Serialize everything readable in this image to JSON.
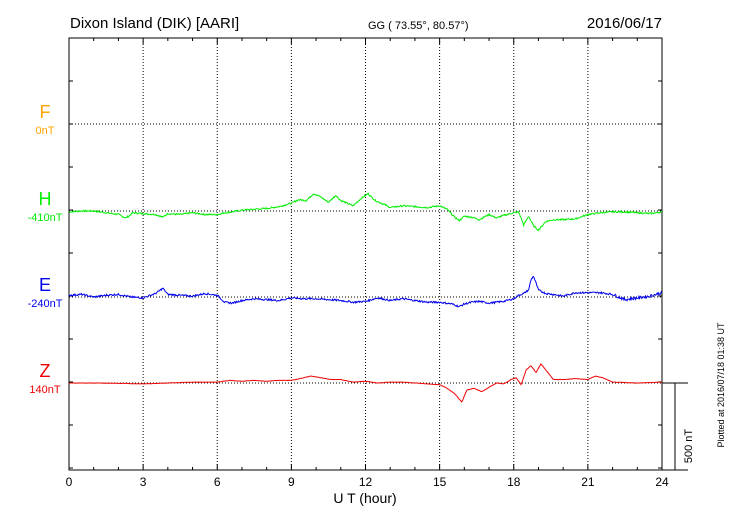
{
  "header": {
    "title": "Dixon Island (DIK)  [AARI]",
    "coords": "GG ( 73.55°,  80.57°)",
    "date": "2016/06/17"
  },
  "footer": {
    "plotted": "Plotted at 2016/07/18 01:38 UT"
  },
  "chart_data": {
    "type": "line",
    "xlabel": "U T (hour)",
    "xlim": [
      0,
      24
    ],
    "xticks": [
      "0",
      "3",
      "6",
      "9",
      "12",
      "15",
      "18",
      "21",
      "24"
    ],
    "scale_label": "500 nT",
    "scale_nT": 500,
    "grid": "dotted",
    "series": [
      {
        "name": "F",
        "baseline": "0nT",
        "color": "#FFA500",
        "values": []
      },
      {
        "name": "H",
        "baseline": "-410nT",
        "color": "#00EE00",
        "x": [
          0,
          0.5,
          1,
          1.5,
          2,
          2.3,
          2.6,
          3,
          3.5,
          3.8,
          4,
          4.5,
          5,
          5.5,
          6,
          6.3,
          6.6,
          7,
          7.5,
          8,
          8.5,
          9,
          9.3,
          9.6,
          9.9,
          10.2,
          10.5,
          10.8,
          11,
          11.5,
          11.8,
          12.1,
          12.4,
          12.8,
          13,
          13.5,
          14,
          14.5,
          15,
          15.3,
          15.6,
          15.8,
          16,
          16.3,
          16.6,
          17,
          17.3,
          17.6,
          18,
          18.2,
          18.4,
          18.6,
          18.8,
          19,
          19.3,
          19.6,
          20,
          20.5,
          21,
          21.5,
          22,
          22.5,
          23,
          23.5,
          24
        ],
        "values": [
          -5,
          0,
          0,
          -10,
          -20,
          -40,
          -10,
          -15,
          -20,
          -35,
          -15,
          -20,
          -10,
          -20,
          -20,
          -10,
          -5,
          5,
          10,
          15,
          25,
          45,
          65,
          60,
          100,
          80,
          50,
          90,
          60,
          30,
          70,
          100,
          60,
          35,
          20,
          30,
          25,
          20,
          30,
          10,
          -35,
          -55,
          -30,
          -35,
          -50,
          -20,
          -40,
          -25,
          -10,
          -5,
          -80,
          -30,
          -85,
          -110,
          -60,
          -50,
          -50,
          -45,
          -20,
          -10,
          -5,
          -5,
          -10,
          -15,
          -5
        ]
      },
      {
        "name": "E",
        "baseline": "-240nT",
        "color": "#0000EE",
        "x": [
          0,
          0.5,
          1,
          1.5,
          2,
          2.5,
          3,
          3.5,
          3.8,
          4,
          4.5,
          5,
          5.5,
          6,
          6.3,
          6.6,
          7,
          7.5,
          8,
          8.5,
          9,
          9.5,
          10,
          10.5,
          11,
          11.5,
          12,
          12.5,
          13,
          13.5,
          14,
          14.5,
          15,
          15.5,
          15.8,
          16,
          16.3,
          16.6,
          17,
          17.3,
          17.6,
          18,
          18.2,
          18.4,
          18.6,
          18.7,
          18.8,
          19,
          19.3,
          19.6,
          20,
          20.5,
          21,
          21.5,
          22,
          22.5,
          23,
          23.5,
          24
        ],
        "values": [
          10,
          15,
          0,
          10,
          15,
          0,
          -5,
          20,
          50,
          15,
          10,
          5,
          20,
          10,
          -30,
          -35,
          -20,
          -10,
          -15,
          -20,
          -5,
          -10,
          -10,
          -15,
          -20,
          -30,
          -25,
          -5,
          -20,
          -10,
          -20,
          -30,
          -30,
          -40,
          -55,
          -40,
          -30,
          -25,
          -35,
          -30,
          -25,
          -10,
          10,
          20,
          40,
          100,
          120,
          40,
          20,
          15,
          5,
          25,
          25,
          25,
          15,
          -15,
          -5,
          5,
          25
        ]
      },
      {
        "name": "Z",
        "baseline": "140nT",
        "color": "#EE0000",
        "x": [
          0,
          1,
          2,
          3,
          4,
          5,
          6,
          6.5,
          7,
          7.5,
          8,
          8.5,
          9,
          9.5,
          9.8,
          10.2,
          10.6,
          11,
          11.5,
          12,
          12.5,
          13,
          13.5,
          14,
          14.5,
          15,
          15.3,
          15.6,
          15.9,
          16.1,
          16.4,
          16.7,
          17,
          17.3,
          17.6,
          17.9,
          18.1,
          18.3,
          18.5,
          18.7,
          18.9,
          19.1,
          19.3,
          19.6,
          20,
          20.5,
          21,
          21.3,
          21.6,
          22,
          23,
          24
        ],
        "values": [
          0,
          0,
          -2,
          -5,
          0,
          5,
          5,
          15,
          10,
          15,
          10,
          15,
          15,
          30,
          40,
          30,
          20,
          20,
          5,
          10,
          0,
          5,
          5,
          0,
          -5,
          -10,
          -30,
          -60,
          -110,
          -40,
          -30,
          -50,
          -25,
          0,
          -5,
          20,
          30,
          -10,
          75,
          100,
          60,
          110,
          75,
          20,
          20,
          25,
          20,
          40,
          30,
          5,
          0,
          5
        ]
      }
    ]
  }
}
